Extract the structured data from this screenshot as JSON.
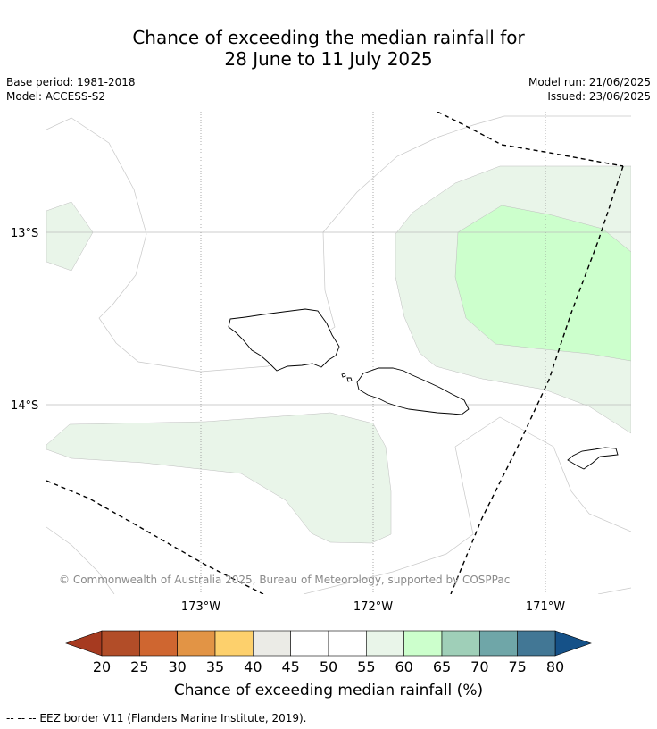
{
  "title": {
    "line1": "Chance of exceeding the median rainfall for",
    "line2": "28 June to 11 July 2025"
  },
  "meta": {
    "base_period": "Base period: 1981-2018",
    "model": "Model: ACCESS-S2",
    "model_run": "Model run: 21/06/2025",
    "issued": "Issued: 23/06/2025"
  },
  "map": {
    "lat_labels": [
      "13°S",
      "14°S"
    ],
    "lon_labels": [
      "173°W",
      "172°W",
      "171°W"
    ],
    "copyright": "© Commonwealth of Australia 2025, Bureau of Meteorology, supported by COSPPac",
    "colors": {
      "cat_55_60": "#e9f5e9",
      "cat_60_65": "#ccffcc",
      "coast": "#000000",
      "eez": "#000000"
    }
  },
  "colorbar": {
    "ticks": [
      "20",
      "25",
      "30",
      "35",
      "40",
      "45",
      "50",
      "55",
      "60",
      "65",
      "70",
      "75",
      "80"
    ],
    "colors": [
      "#a63a20",
      "#b24d28",
      "#cf6630",
      "#e29445",
      "#fdd06c",
      "#ebebe6",
      "#ffffff",
      "#ffffff",
      "#e9f5e9",
      "#ccffcc",
      "#9fcfb8",
      "#6fa6a8",
      "#427795",
      "#155188"
    ],
    "label": "Chance of exceeding median rainfall (%)"
  },
  "footer": "-- -- -- EEZ border V11 (Flanders Marine Institute, 2019)."
}
